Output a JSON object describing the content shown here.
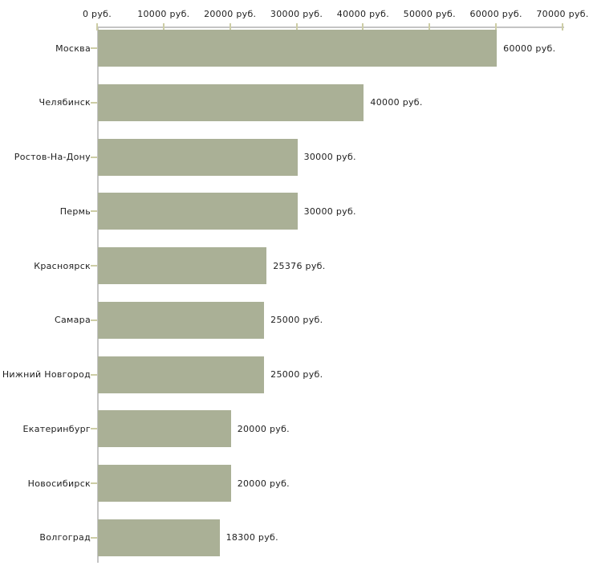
{
  "chart": {
    "background_color": "#ffffff",
    "bar_color": "#aab096",
    "tick_color": "#cdcda5",
    "axis_line_color": "#c4c4c4",
    "text_color": "#1e1e1e"
  },
  "chart_data": {
    "type": "bar",
    "orientation": "horizontal",
    "title": "",
    "xlabel": "",
    "ylabel": "",
    "unit": "руб.",
    "grid": "off",
    "legend": "none",
    "xlim": [
      0,
      70000
    ],
    "x_axis_position": "top",
    "x_ticks": [
      0,
      10000,
      20000,
      30000,
      40000,
      50000,
      60000,
      70000
    ],
    "x_tick_labels": [
      "0 руб.",
      "10000 руб.",
      "20000 руб.",
      "30000 руб.",
      "40000 руб.",
      "50000 руб.",
      "60000 руб.",
      "70000 руб."
    ],
    "categories": [
      "Москва",
      "Челябинск",
      "Ростов-На-Дону",
      "Пермь",
      "Красноярск",
      "Самара",
      "Нижний Новгород",
      "Екатеринбург",
      "Новосибирск",
      "Волгоград"
    ],
    "values": [
      60000,
      40000,
      30000,
      30000,
      25376,
      25000,
      25000,
      20000,
      20000,
      18300
    ],
    "value_labels": [
      "60000 руб.",
      "40000 руб.",
      "30000 руб.",
      "30000 руб.",
      "25376 руб.",
      "25000 руб.",
      "25000 руб.",
      "20000 руб.",
      "20000 руб.",
      "18300 руб."
    ]
  }
}
